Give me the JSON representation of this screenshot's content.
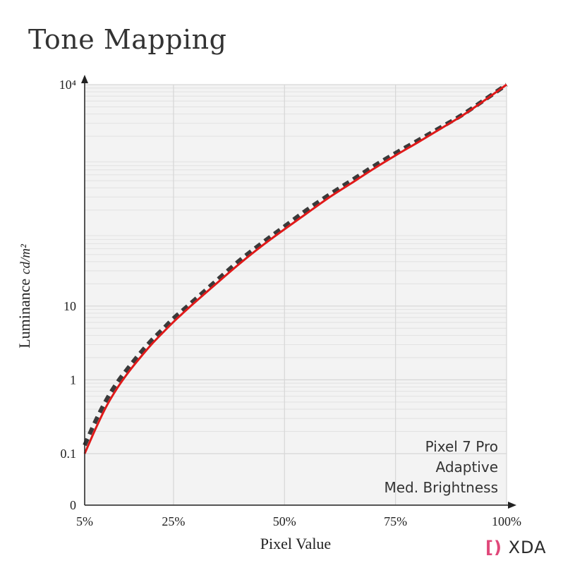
{
  "chart_data": {
    "type": "line",
    "title": "Tone Mapping",
    "xlabel": "Pixel Value",
    "ylabel": "Luminance",
    "ylabel_unit": "cd/m²",
    "x_ticks": [
      "5%",
      "25%",
      "50%",
      "75%",
      "100%"
    ],
    "y_ticks": [
      "0",
      "0.1",
      "1",
      "10",
      "10⁴"
    ],
    "xlim": [
      5,
      100
    ],
    "ylim": [
      0,
      10000
    ],
    "y_scale": "log",
    "grid": true,
    "annotation": [
      "Pixel 7 Pro",
      "Adaptive",
      "Med. Brightness"
    ],
    "series": [
      {
        "style": "dashed",
        "color": "#3a3a3a",
        "x": [
          5,
          7.5,
          10,
          12.5,
          15,
          17.5,
          20,
          22.5,
          25,
          27.5,
          30,
          35,
          40,
          45,
          50,
          55,
          60,
          65,
          70,
          75,
          80,
          85,
          90,
          95,
          100
        ],
        "y": [
          0.13,
          0.28,
          0.55,
          0.95,
          1.5,
          2.3,
          3.4,
          4.8,
          6.8,
          9.2,
          12.5,
          23,
          42,
          72,
          120,
          200,
          320,
          500,
          780,
          1180,
          1750,
          2600,
          3900,
          6200,
          10000
        ]
      },
      {
        "style": "solid",
        "color": "#e01919",
        "x": [
          5,
          7.5,
          10,
          12.5,
          15,
          17.5,
          20,
          22.5,
          25,
          27.5,
          30,
          35,
          40,
          45,
          50,
          55,
          60,
          65,
          70,
          75,
          80,
          85,
          90,
          95,
          100
        ],
        "y": [
          0.1,
          0.22,
          0.45,
          0.8,
          1.3,
          2.0,
          3.0,
          4.3,
          6.1,
          8.4,
          11.5,
          21,
          38,
          66,
          110,
          180,
          295,
          460,
          720,
          1100,
          1650,
          2500,
          3800,
          6100,
          10000
        ]
      }
    ]
  },
  "logo": {
    "bracket": "[)",
    "text": "XDA"
  }
}
